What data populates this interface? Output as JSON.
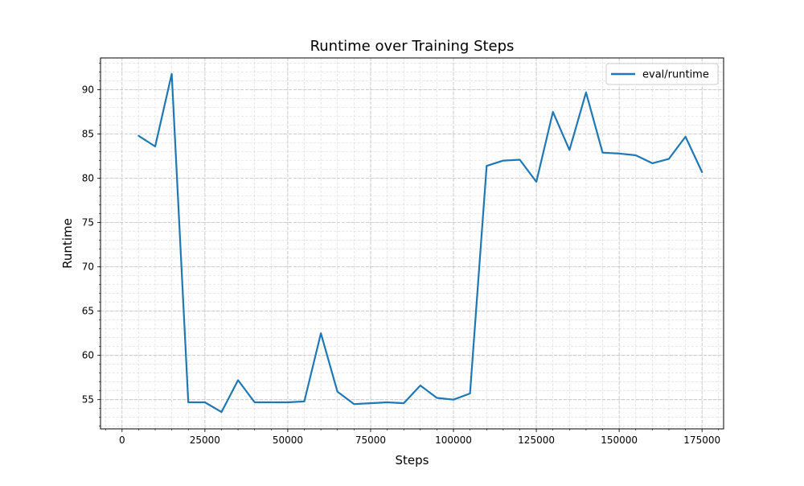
{
  "chart_data": {
    "type": "line",
    "title": "Runtime over Training Steps",
    "xlabel": "Steps",
    "ylabel": "Runtime",
    "xlim": [
      -6500,
      181500
    ],
    "ylim": [
      51.7,
      93.6
    ],
    "x_ticks": [
      0,
      25000,
      50000,
      75000,
      100000,
      125000,
      150000,
      175000
    ],
    "y_ticks": [
      55,
      60,
      65,
      70,
      75,
      80,
      85,
      90
    ],
    "grid": true,
    "legend_position": "top-right",
    "series": [
      {
        "name": "eval/runtime",
        "color": "#1f77b4",
        "x": [
          5000,
          10000,
          15000,
          20000,
          25000,
          30000,
          35000,
          40000,
          45000,
          50000,
          55000,
          60000,
          65000,
          70000,
          75000,
          80000,
          85000,
          90000,
          95000,
          100000,
          105000,
          110000,
          115000,
          120000,
          125000,
          130000,
          135000,
          140000,
          145000,
          150000,
          155000,
          160000,
          165000,
          170000,
          175000
        ],
        "y": [
          84.8,
          83.6,
          91.8,
          54.7,
          54.7,
          53.6,
          57.2,
          54.7,
          54.7,
          54.7,
          54.8,
          62.5,
          55.9,
          54.5,
          54.6,
          54.7,
          54.6,
          56.6,
          55.2,
          55.0,
          55.7,
          81.4,
          82.0,
          82.1,
          79.6,
          87.5,
          83.2,
          89.7,
          82.9,
          82.8,
          82.6,
          81.7,
          82.2,
          84.7,
          80.7
        ]
      }
    ]
  }
}
